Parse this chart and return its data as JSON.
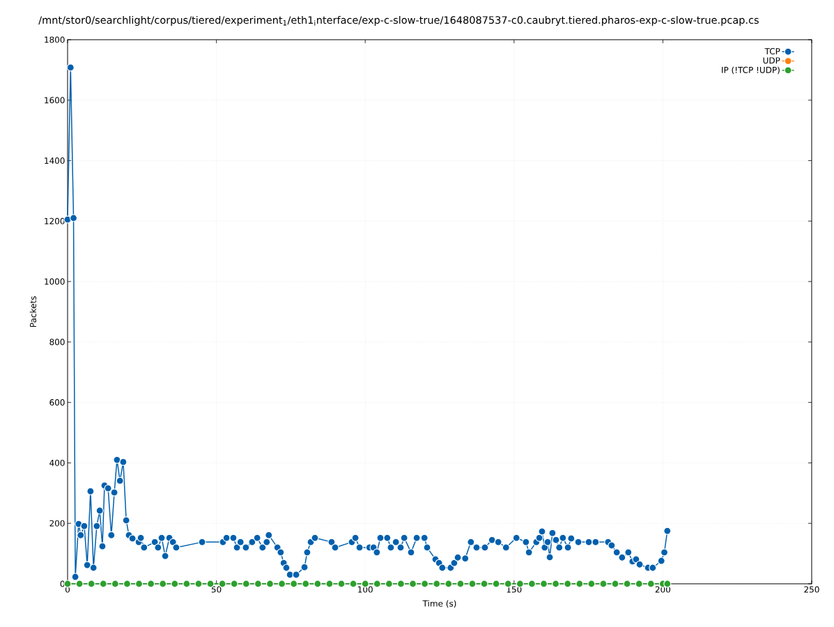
{
  "chart_data": {
    "type": "line",
    "title": "/mnt/stor0/searchlight/corpus/tiered/experiment$_{1}$/eth1$_{i}$nterface/exp-c-slow-true/1648087537-c0.caubryt.tiered.pharos-exp-c-slow-true.pcap.cs",
    "xlabel": "Time (s)",
    "ylabel": "Packets",
    "xlim": [
      0,
      250
    ],
    "xticks": [
      0,
      50,
      100,
      150,
      200,
      250
    ],
    "ylim": [
      0,
      1800
    ],
    "yticks": [
      0,
      200,
      400,
      600,
      800,
      1000,
      1200,
      1400,
      1600,
      1800
    ],
    "grid": true,
    "legend": "top right",
    "marker": "circle",
    "line_style": "solid",
    "series": [
      {
        "name": "TCP",
        "color": "#0060ad",
        "x": [
          0,
          1,
          2,
          2.6,
          3.7,
          4.4,
          5.6,
          6.6,
          7.7,
          8.7,
          9.8,
          10.8,
          11.7,
          12.4,
          13.6,
          14.7,
          15.7,
          16.6,
          17.6,
          18.7,
          19.7,
          20.6,
          21.8,
          23.9,
          24.6,
          25.7,
          29.3,
          30.4,
          31.6,
          32.8,
          34.2,
          35.4,
          36.5,
          45.2,
          52.2,
          53.4,
          55.7,
          56.9,
          58.1,
          59.9,
          62.0,
          63.7,
          65.5,
          66.9,
          67.6,
          70.5,
          71.6,
          72.6,
          73.5,
          74.7,
          76.8,
          79.6,
          80.5,
          81.7,
          83.1,
          88.7,
          89.9,
          95.5,
          96.7,
          98.1,
          101.4,
          102.8,
          103.9,
          105.1,
          107.4,
          108.6,
          110.3,
          111.9,
          113.1,
          115.4,
          117.3,
          119.9,
          120.8,
          123.6,
          124.8,
          125.9,
          128.7,
          129.9,
          131.1,
          133.6,
          135.5,
          137.4,
          140.2,
          142.6,
          144.7,
          147.3,
          150.8,
          154.0,
          155.0,
          157.5,
          158.5,
          159.4,
          160.3,
          161.3,
          162.0,
          162.9,
          164.1,
          165.2,
          166.4,
          168.1,
          169.2,
          171.6,
          175.1,
          177.4,
          181.6,
          182.8,
          184.5,
          186.3,
          188.4,
          189.8,
          191.0,
          192.2,
          195.0,
          196.6,
          199.5,
          200.5,
          201.5
        ],
        "values": [
          1205,
          1708,
          1210,
          23,
          198,
          161,
          191,
          62,
          306,
          53,
          191,
          242,
          124,
          325,
          316,
          161,
          302,
          410,
          341,
          403,
          210,
          161,
          150,
          138,
          152,
          120,
          138,
          120,
          152,
          92,
          152,
          138,
          120,
          138,
          138,
          152,
          152,
          120,
          138,
          120,
          138,
          152,
          120,
          138,
          161,
          120,
          104,
          69,
          53,
          30,
          30,
          55,
          104,
          138,
          152,
          138,
          120,
          138,
          152,
          120,
          120,
          120,
          104,
          152,
          152,
          120,
          138,
          120,
          152,
          104,
          152,
          152,
          120,
          81,
          69,
          53,
          53,
          69,
          87,
          84,
          138,
          120,
          120,
          145,
          138,
          120,
          152,
          138,
          104,
          138,
          152,
          173,
          120,
          138,
          88,
          168,
          145,
          120,
          152,
          120,
          150,
          138,
          138,
          138,
          138,
          127,
          104,
          87,
          104,
          74,
          81,
          64,
          53,
          53,
          76,
          104,
          175
        ]
      },
      {
        "name": "UDP",
        "color": "#ff7f0e"
      },
      {
        "name": "IP (!TCP  !UDP)",
        "color": "#2ca02c",
        "x": [
          0,
          4,
          8,
          12,
          16,
          20,
          24,
          28,
          32,
          36,
          40,
          44,
          48,
          52,
          56,
          60,
          64,
          68,
          72,
          76,
          80,
          84,
          88,
          92,
          96,
          100,
          104,
          108,
          112,
          116,
          120,
          124,
          128,
          132,
          136,
          140,
          144,
          148,
          152,
          156,
          160,
          164,
          168,
          172,
          176,
          180,
          184,
          188,
          192,
          196,
          200,
          201.5
        ],
        "values": [
          0,
          0,
          0,
          0,
          0,
          0,
          0,
          0,
          0,
          0,
          0,
          0,
          0,
          0,
          0,
          0,
          0,
          0,
          0,
          0,
          0,
          0,
          0,
          0,
          0,
          0,
          0,
          0,
          0,
          0,
          0,
          0,
          0,
          0,
          0,
          0,
          0,
          0,
          0,
          0,
          0,
          0,
          0,
          0,
          0,
          0,
          0,
          0,
          0,
          0,
          0,
          0
        ]
      }
    ]
  }
}
